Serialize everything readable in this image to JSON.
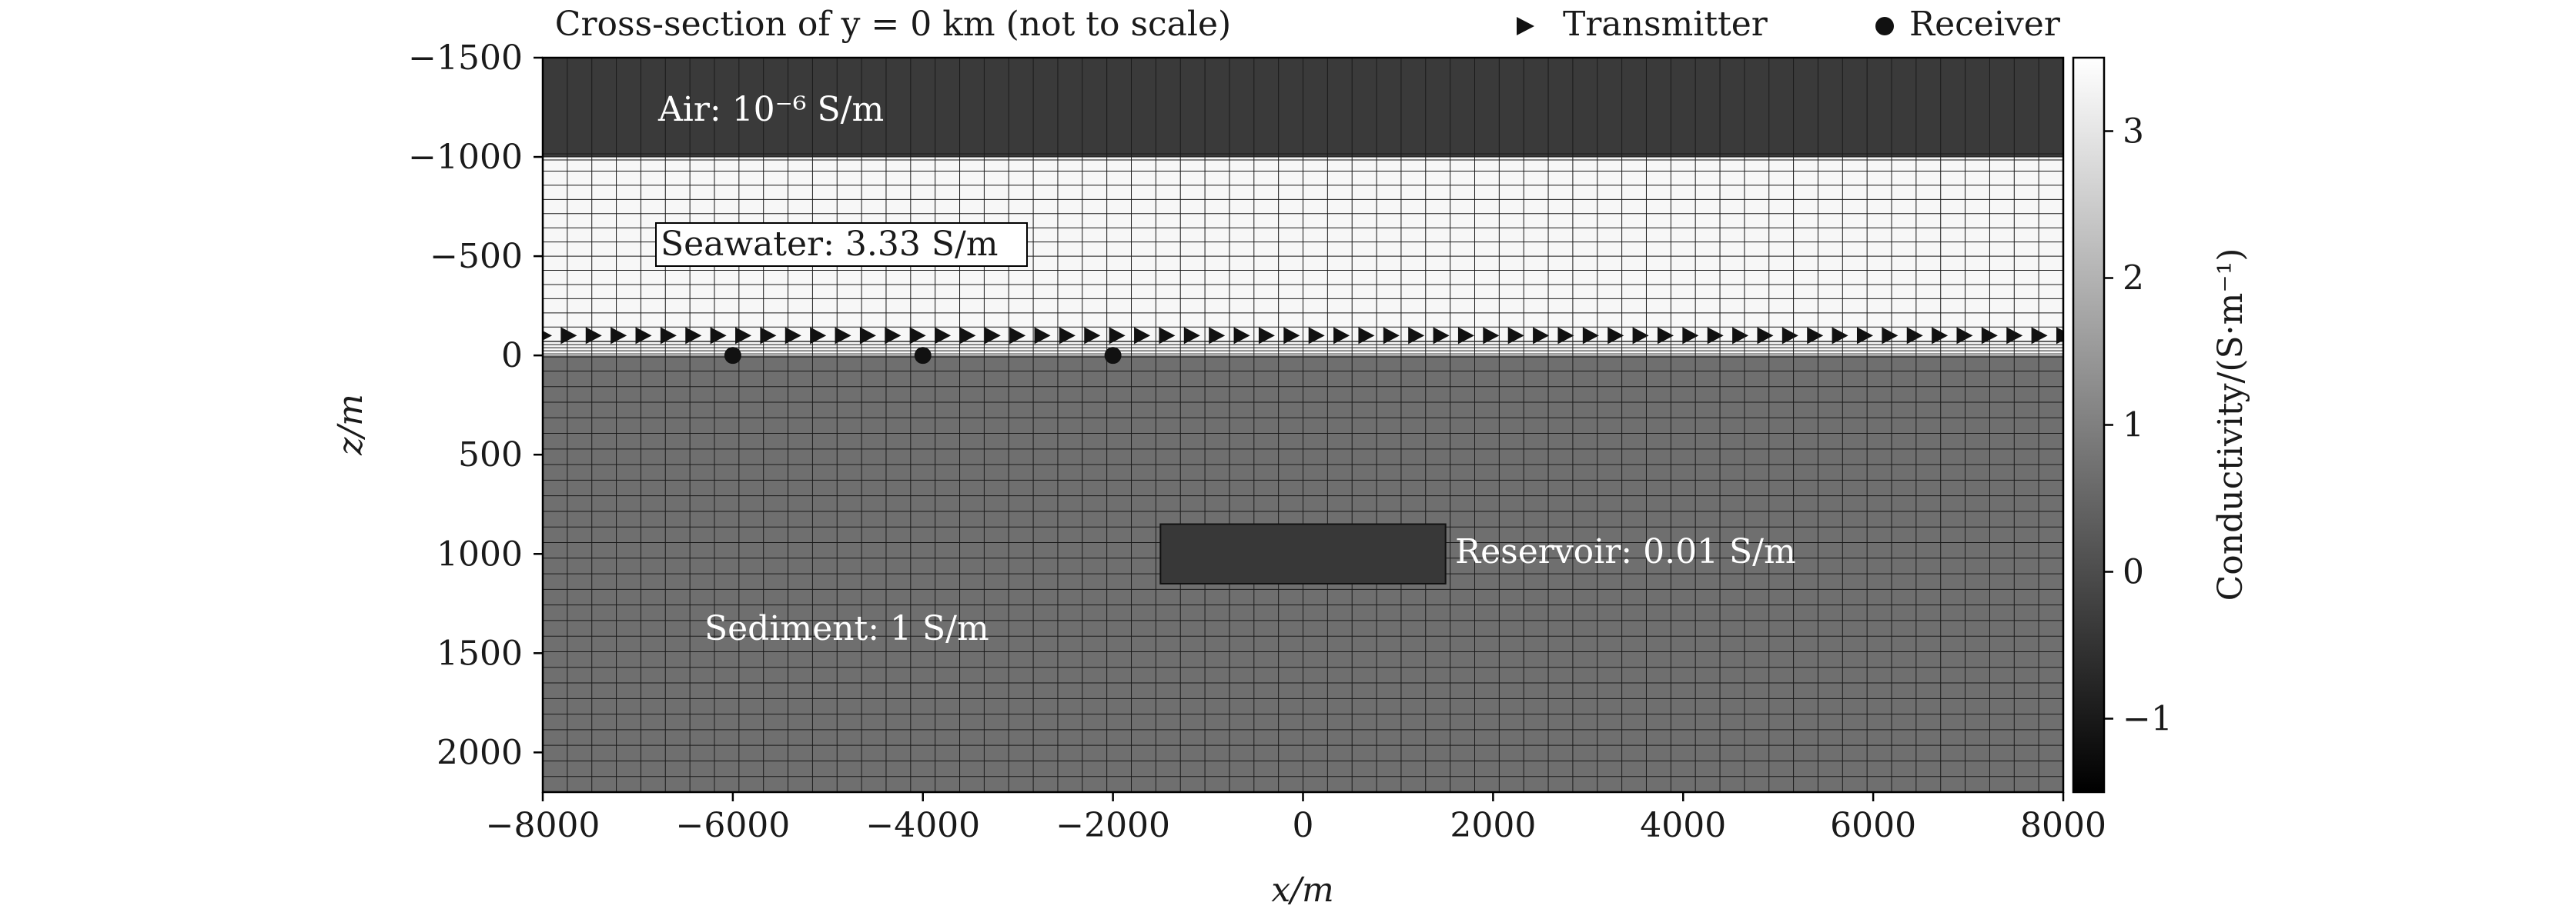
{
  "title": "Cross-section of y = 0 km (not to scale)",
  "legend": [
    {
      "label": "Transmitter",
      "marker": "triangle-right"
    },
    {
      "label": "Receiver",
      "marker": "circle"
    }
  ],
  "xlabel": "x/m",
  "ylabel": "z/m",
  "colorbar": {
    "label": "Conductivity/(S·m⁻¹)",
    "range": [
      -1.5,
      3.5
    ],
    "ticks": [
      "−1",
      "0",
      "1",
      "2",
      "3"
    ],
    "tick_values": [
      -1,
      0,
      1,
      2,
      3
    ],
    "colormap": "gray"
  },
  "annotations": {
    "air": "Air: 10⁻⁶ S/m",
    "seawater": "Seawater: 3.33 S/m",
    "sediment": "Sediment: 1 S/m",
    "reservoir": "Reservoir: 0.01 S/m"
  },
  "chart_data": {
    "type": "heatmap",
    "title": "Cross-section of y = 0 km (not to scale)",
    "xlabel": "x/m",
    "ylabel": "z/m",
    "xlim": [
      -8000,
      8000
    ],
    "ylim": [
      2200,
      -1500
    ],
    "x_ticks": [
      -8000,
      -6000,
      -4000,
      -2000,
      0,
      2000,
      4000,
      6000,
      8000
    ],
    "x_tick_labels": [
      "−8000",
      "−6000",
      "−4000",
      "−2000",
      "0",
      "2000",
      "4000",
      "6000",
      "8000"
    ],
    "y_ticks": [
      -1500,
      -1000,
      -500,
      0,
      500,
      1000,
      1500,
      2000
    ],
    "y_tick_labels": [
      "−1500",
      "−1000",
      "−500",
      "0",
      "500",
      "1000",
      "1500",
      "2000"
    ],
    "grid": true,
    "layers": [
      {
        "name": "Air",
        "z_range": [
          -1500,
          -1000
        ],
        "conductivity": 1e-06,
        "log10_value": -6,
        "color": "#3a3a3a"
      },
      {
        "name": "Seawater",
        "z_range": [
          -1000,
          0
        ],
        "conductivity": 3.33,
        "color": "#f7f7f7"
      },
      {
        "name": "Sediment",
        "z_range": [
          0,
          2200
        ],
        "conductivity": 1,
        "color": "#6f6f6f"
      }
    ],
    "reservoir": {
      "x_range": [
        -1500,
        1500
      ],
      "z_range": [
        850,
        1150
      ],
      "conductivity": 0.01,
      "color": "#383838"
    },
    "transmitters": {
      "z": -100,
      "x_start": -8000,
      "x_end": 8000,
      "count": 62
    },
    "receivers": {
      "z": 0,
      "x": [
        -6000,
        -4000,
        -2000
      ]
    }
  }
}
